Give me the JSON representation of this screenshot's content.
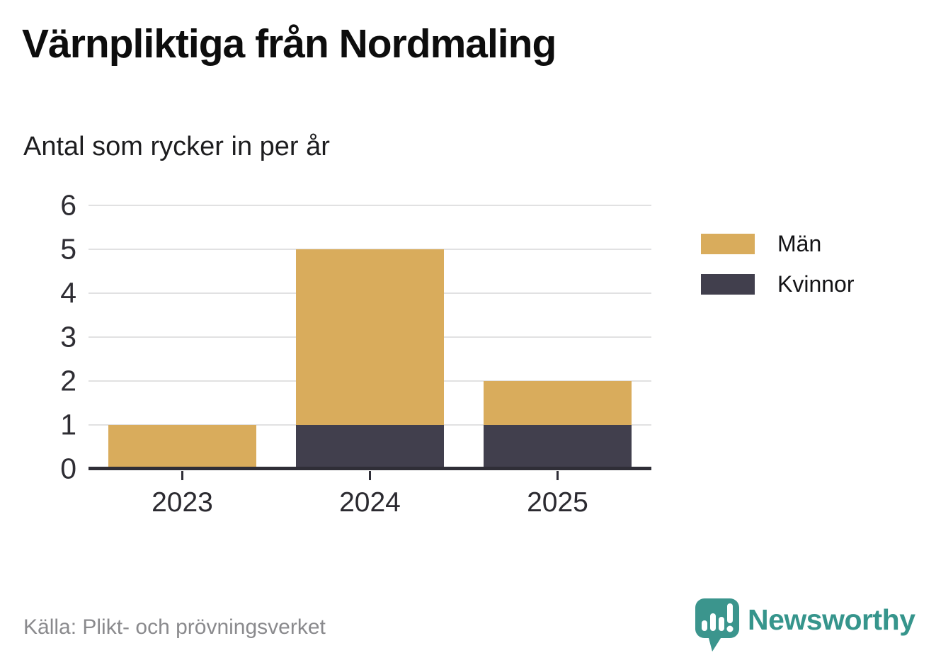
{
  "title": "Värnpliktiga från Nordmaling",
  "subtitle": "Antal som rycker in per år",
  "source": "Källa: Plikt- och prövningsverket",
  "brand": {
    "name": "Newsworthy",
    "color": "#36958c"
  },
  "colors": {
    "man": "#d9ac5c",
    "kvinnor": "#413f4d",
    "axis": "#2f2e37",
    "gridline": "#e1e1e2",
    "tick_text": "#2e2d33",
    "source_text": "#8a8a8d",
    "brand_teal": "#36958c"
  },
  "chart_data": {
    "type": "bar",
    "stacked": true,
    "title": "Värnpliktiga från Nordmaling",
    "subtitle": "Antal som rycker in per år",
    "xlabel": "",
    "ylabel": "",
    "categories": [
      "2023",
      "2024",
      "2025"
    ],
    "series": [
      {
        "name": "Män",
        "color": "#d9ac5c",
        "values": [
          1,
          4,
          1
        ]
      },
      {
        "name": "Kvinnor",
        "color": "#413f4d",
        "values": [
          0,
          1,
          1
        ]
      }
    ],
    "totals": [
      1,
      5,
      2
    ],
    "ylim": [
      0,
      6
    ],
    "yticks": [
      0,
      1,
      2,
      3,
      4,
      5,
      6
    ],
    "grid": true,
    "legend": [
      "Män",
      "Kvinnor"
    ],
    "legend_position": "right",
    "stack_order_bottom_to_top": [
      "Kvinnor",
      "Män"
    ]
  }
}
